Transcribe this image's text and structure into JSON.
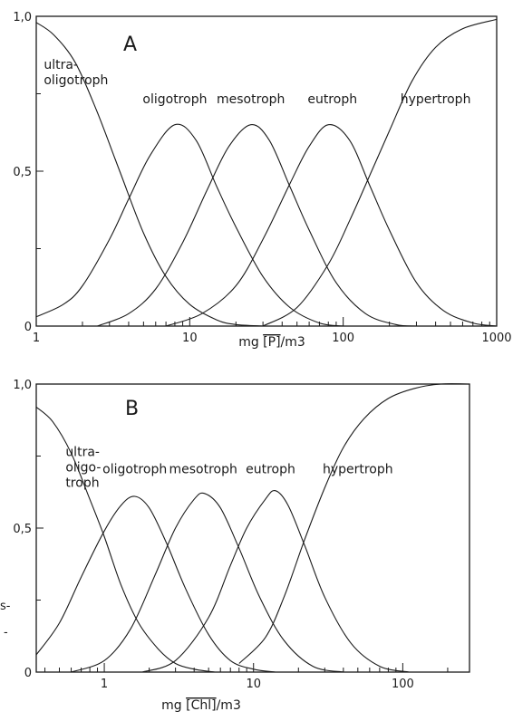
{
  "chart_data": [
    {
      "type": "line",
      "panel_label": "A",
      "x_scale": "log",
      "xlim": [
        1,
        1000
      ],
      "ylim": [
        0,
        1
      ],
      "xlabel": {
        "prefix": "mg ",
        "overlined": "[P]",
        "unit": "/m3"
      },
      "x_ticks": [
        {
          "value": 1,
          "label": "1"
        },
        {
          "value": 10,
          "label": "10"
        },
        {
          "value": 100,
          "label": "100"
        },
        {
          "value": 1000,
          "label": "1000"
        }
      ],
      "y_ticks": [
        {
          "value": 0,
          "label": "0"
        },
        {
          "value": 0.5,
          "label": "0,5"
        },
        {
          "value": 1,
          "label": "1,0"
        }
      ],
      "series": [
        {
          "name": "ultra-\noligotroph",
          "x": [
            1,
            1.3,
            1.8,
            2.5,
            3.5,
            5,
            7,
            10,
            15,
            20,
            30
          ],
          "y": [
            0.98,
            0.94,
            0.85,
            0.69,
            0.5,
            0.3,
            0.16,
            0.07,
            0.02,
            0.005,
            0
          ]
        },
        {
          "name": "oligotroph",
          "x": [
            1,
            1.5,
            2,
            3,
            4,
            5.5,
            8,
            11,
            15,
            20,
            30,
            45,
            70,
            100
          ],
          "y": [
            0.03,
            0.07,
            0.13,
            0.28,
            0.41,
            0.55,
            0.65,
            0.6,
            0.45,
            0.32,
            0.16,
            0.06,
            0.01,
            0
          ]
        },
        {
          "name": "mesotroph",
          "x": [
            2.5,
            4,
            6,
            9,
            13,
            18,
            25,
            33,
            45,
            60,
            90,
            140,
            220,
            300
          ],
          "y": [
            0,
            0.04,
            0.12,
            0.27,
            0.44,
            0.58,
            0.65,
            0.6,
            0.45,
            0.31,
            0.14,
            0.04,
            0.005,
            0
          ]
        },
        {
          "name": "eutroph",
          "x": [
            7,
            12,
            20,
            30,
            45,
            60,
            80,
            110,
            150,
            200,
            300,
            450,
            700,
            1000
          ],
          "y": [
            0,
            0.04,
            0.13,
            0.28,
            0.46,
            0.58,
            0.65,
            0.6,
            0.45,
            0.31,
            0.14,
            0.05,
            0.01,
            0
          ]
        },
        {
          "name": "hypertroph",
          "x": [
            30,
            50,
            80,
            110,
            150,
            200,
            280,
            400,
            600,
            1000
          ],
          "y": [
            0,
            0.06,
            0.2,
            0.34,
            0.49,
            0.63,
            0.79,
            0.9,
            0.96,
            0.99
          ]
        }
      ],
      "annotations": [
        {
          "text": "ultra-\noligotroph",
          "x": 1.12,
          "y": 0.83
        },
        {
          "text": "oligotroph",
          "x": 8,
          "y": 0.72
        },
        {
          "text": "mesotroph",
          "x": 25,
          "y": 0.72
        },
        {
          "text": "eutroph",
          "x": 85,
          "y": 0.72
        },
        {
          "text": "hypertroph",
          "x": 400,
          "y": 0.72
        }
      ]
    },
    {
      "type": "line",
      "panel_label": "B",
      "x_scale": "log",
      "xlim": [
        0.35,
        280
      ],
      "ylim": [
        0,
        1
      ],
      "xlabel": {
        "prefix": "mg ",
        "overlined": "[Chl]",
        "unit": "/m3"
      },
      "x_ticks": [
        {
          "value": 1,
          "label": "1"
        },
        {
          "value": 10,
          "label": "10"
        },
        {
          "value": 100,
          "label": "100"
        }
      ],
      "y_ticks": [
        {
          "value": 0,
          "label": "0"
        },
        {
          "value": 0.5,
          "label": "0,5"
        },
        {
          "value": 1,
          "label": "1,0"
        }
      ],
      "series": [
        {
          "name": "ultra-\noligo-\ntroph",
          "x": [
            0.35,
            0.45,
            0.6,
            0.8,
            1,
            1.3,
            1.7,
            2.3,
            3,
            4,
            5.5
          ],
          "y": [
            0.92,
            0.87,
            0.76,
            0.6,
            0.47,
            0.3,
            0.17,
            0.08,
            0.03,
            0.01,
            0
          ]
        },
        {
          "name": "oligotroph",
          "x": [
            0.35,
            0.5,
            0.7,
            1,
            1.3,
            1.6,
            2,
            2.6,
            3.5,
            5,
            7,
            10,
            14
          ],
          "y": [
            0.06,
            0.17,
            0.33,
            0.49,
            0.58,
            0.61,
            0.57,
            0.45,
            0.29,
            0.13,
            0.04,
            0.01,
            0
          ]
        },
        {
          "name": "mesotroph",
          "x": [
            0.6,
            1,
            1.5,
            2.2,
            3,
            4,
            4.7,
            6,
            8,
            11,
            16,
            25,
            40
          ],
          "y": [
            0,
            0.04,
            0.15,
            0.34,
            0.5,
            0.6,
            0.62,
            0.57,
            0.43,
            0.26,
            0.11,
            0.02,
            0
          ]
        },
        {
          "name": "eutroph",
          "x": [
            1.8,
            3,
            5,
            7,
            9,
            12,
            14,
            17,
            22,
            30,
            45,
            70,
            110
          ],
          "y": [
            0,
            0.04,
            0.19,
            0.37,
            0.5,
            0.6,
            0.63,
            0.58,
            0.44,
            0.26,
            0.1,
            0.02,
            0
          ]
        },
        {
          "name": "hypertroph",
          "x": [
            8,
            12,
            16,
            22,
            30,
            40,
            55,
            80,
            120,
            180,
            280
          ],
          "y": [
            0.03,
            0.12,
            0.26,
            0.46,
            0.64,
            0.78,
            0.88,
            0.95,
            0.985,
            1,
            1
          ]
        }
      ],
      "annotations": [
        {
          "text": "ultra-\noligo-\ntroph",
          "x": 0.55,
          "y": 0.75
        },
        {
          "text": "oligotroph",
          "x": 1.6,
          "y": 0.69
        },
        {
          "text": "mesotroph",
          "x": 4.6,
          "y": 0.69
        },
        {
          "text": "eutroph",
          "x": 13,
          "y": 0.69
        },
        {
          "text": "hypertroph",
          "x": 50,
          "y": 0.69
        }
      ]
    }
  ],
  "margin_fragments": [
    "s-",
    "-"
  ]
}
